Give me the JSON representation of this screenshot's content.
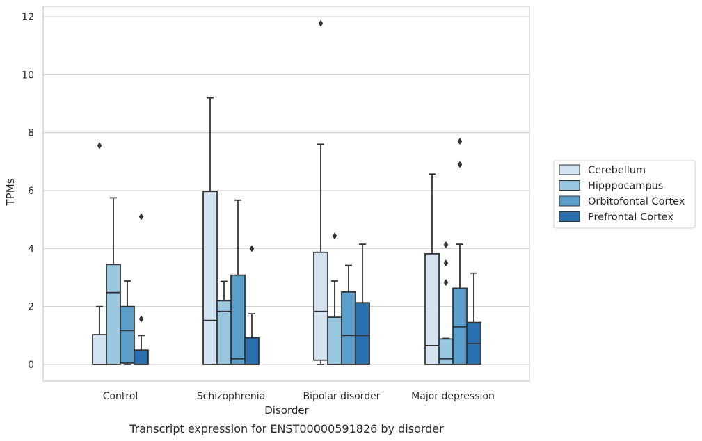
{
  "chart_data": {
    "type": "boxplot",
    "title": "",
    "caption": "Transcript expression for ENST00000591826 by disorder",
    "xlabel": "Disorder",
    "ylabel": "TPMs",
    "ylim": [
      -0.57,
      12.35
    ],
    "yticks": [
      0,
      2,
      4,
      6,
      8,
      10,
      12
    ],
    "ytick_labels": [
      "0",
      "2",
      "4",
      "6",
      "8",
      "10",
      "12"
    ],
    "grid": "horizontal",
    "legend_position": "right",
    "categories": [
      "Control",
      "Schizophrenia",
      "Bipolar disorder",
      "Major depression"
    ],
    "series": [
      {
        "name": "Cerebellum",
        "color": "#d3e3f1",
        "boxes": [
          {
            "whislo": 0.0,
            "q1": 0.0,
            "med": 0.0,
            "q3": 1.03,
            "whishi": 2.0,
            "fliers": [
              7.55
            ]
          },
          {
            "whislo": 0.0,
            "q1": 0.0,
            "med": 1.52,
            "q3": 5.97,
            "whishi": 9.2,
            "fliers": []
          },
          {
            "whislo": 0.0,
            "q1": 0.15,
            "med": 1.83,
            "q3": 3.87,
            "whishi": 7.6,
            "fliers": [
              11.77
            ]
          },
          {
            "whislo": 0.0,
            "q1": 0.0,
            "med": 0.65,
            "q3": 3.82,
            "whishi": 6.57,
            "fliers": []
          }
        ]
      },
      {
        "name": "Hipppocampus",
        "color": "#9ac7e0",
        "boxes": [
          {
            "whislo": 0.0,
            "q1": 0.0,
            "med": 2.48,
            "q3": 3.45,
            "whishi": 5.75,
            "fliers": []
          },
          {
            "whislo": 0.0,
            "q1": 0.0,
            "med": 1.83,
            "q3": 2.2,
            "whishi": 2.87,
            "fliers": []
          },
          {
            "whislo": 0.0,
            "q1": 0.0,
            "med": 0.0,
            "q3": 1.63,
            "whishi": 2.88,
            "fliers": [
              4.43
            ]
          },
          {
            "whislo": 0.0,
            "q1": 0.0,
            "med": 0.2,
            "q3": 0.88,
            "whishi": 0.9,
            "fliers": [
              4.13,
              3.5,
              2.83
            ]
          }
        ]
      },
      {
        "name": "Orbitofontal Cortex",
        "color": "#5a9ec9",
        "boxes": [
          {
            "whislo": 0.0,
            "q1": 0.05,
            "med": 1.17,
            "q3": 2.0,
            "whishi": 2.88,
            "fliers": []
          },
          {
            "whislo": 0.0,
            "q1": 0.0,
            "med": 0.2,
            "q3": 3.08,
            "whishi": 5.67,
            "fliers": []
          },
          {
            "whislo": 0.0,
            "q1": 0.0,
            "med": 1.0,
            "q3": 2.5,
            "whishi": 3.42,
            "fliers": []
          },
          {
            "whislo": 0.0,
            "q1": 0.0,
            "med": 1.3,
            "q3": 2.63,
            "whishi": 4.15,
            "fliers": [
              7.7,
              6.9
            ]
          }
        ]
      },
      {
        "name": "Prefrontal Cortex",
        "color": "#2a6fb0",
        "boxes": [
          {
            "whislo": 0.0,
            "q1": 0.0,
            "med": 0.0,
            "q3": 0.5,
            "whishi": 1.0,
            "fliers": [
              5.1,
              1.57
            ]
          },
          {
            "whislo": 0.0,
            "q1": 0.0,
            "med": 0.0,
            "q3": 0.92,
            "whishi": 1.75,
            "fliers": [
              4.0
            ]
          },
          {
            "whislo": 0.0,
            "q1": 0.0,
            "med": 1.0,
            "q3": 2.13,
            "whishi": 4.15,
            "fliers": []
          },
          {
            "whislo": 0.0,
            "q1": 0.0,
            "med": 0.72,
            "q3": 1.45,
            "whishi": 3.15,
            "fliers": []
          }
        ]
      }
    ]
  },
  "colors": {
    "grid": "#cccccc",
    "frame": "#cccccc",
    "line": "#333333",
    "text": "#262626"
  }
}
